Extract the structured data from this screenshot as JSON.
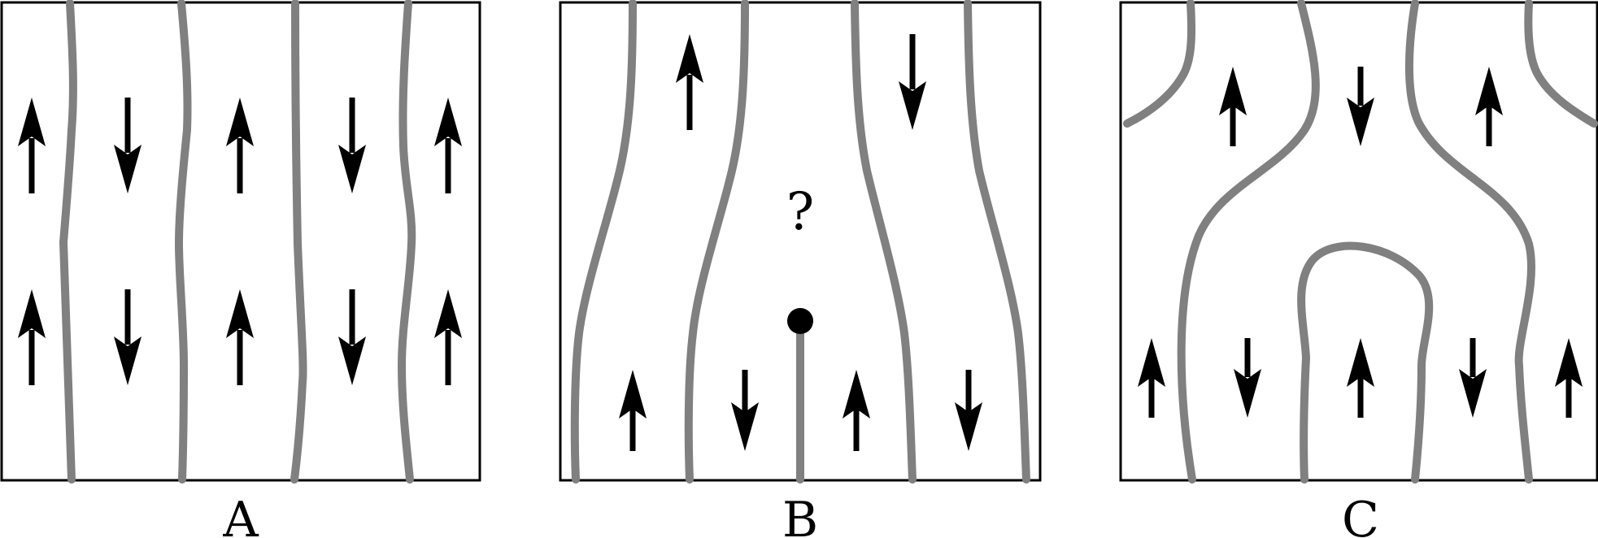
{
  "panels": [
    {
      "label": "A"
    },
    {
      "label": "B",
      "annotation": "?"
    },
    {
      "label": "C"
    }
  ],
  "colors": {
    "domain_wall": "#808080",
    "arrow": "#000000",
    "frame": "#000000"
  }
}
